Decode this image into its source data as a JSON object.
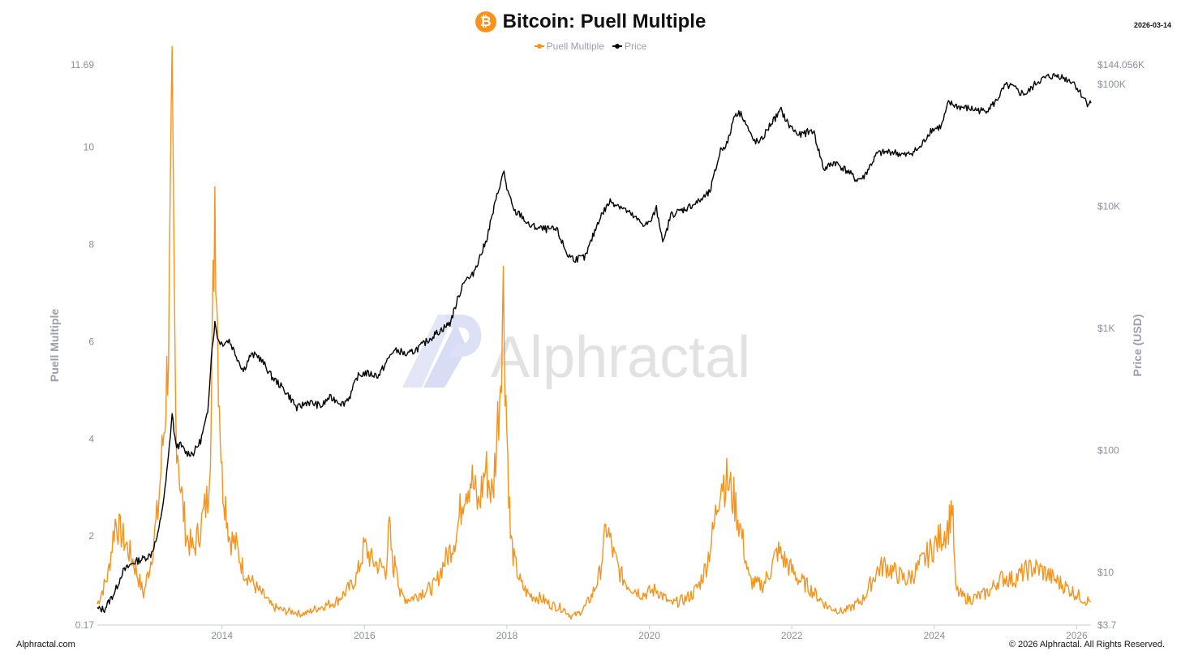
{
  "header": {
    "title": "Bitcoin: Puell Multiple",
    "date": "2026-03-14",
    "icon": "bitcoin-icon"
  },
  "watermark": {
    "text": "Alphractal"
  },
  "footer": {
    "left": "Alphractal.com",
    "right": "© 2026 Alphractal. All Rights Reserved."
  },
  "colors": {
    "puell": "#f7931a",
    "price": "#000000",
    "axis": "#8a8f9c"
  },
  "chart_data": {
    "type": "line",
    "title": "Bitcoin: Puell Multiple",
    "legend": {
      "placement": "top-center",
      "entries": [
        "Puell Multiple",
        "Price"
      ]
    },
    "grid": false,
    "x_axis": {
      "label": "",
      "range": [
        2012.25,
        2026.2
      ],
      "ticks": [
        2014,
        2016,
        2018,
        2020,
        2022,
        2024,
        2026
      ],
      "tick_labels": [
        "2014",
        "2016",
        "2018",
        "2020",
        "2022",
        "2024",
        "2026"
      ]
    },
    "y_axis_left": {
      "label": "Puell Multiple",
      "scale": "linear",
      "range": [
        0.17,
        11.69
      ],
      "ticks": [
        0.17,
        2,
        4,
        6,
        8,
        10,
        11.69
      ],
      "tick_labels": [
        "0.17",
        "2",
        "4",
        "6",
        "8",
        "10",
        "11.69"
      ]
    },
    "y_axis_right": {
      "label": "Price (USD)",
      "scale": "log",
      "range": [
        3.7,
        144056
      ],
      "ticks": [
        3.7,
        10,
        100,
        1000,
        10000,
        100000,
        144056
      ],
      "tick_labels": [
        "$3.7",
        "$10",
        "$100",
        "$1K",
        "$10K",
        "$100K",
        "$144.056K"
      ]
    },
    "series": [
      {
        "name": "Puell Multiple",
        "axis": "left",
        "color": "#f7931a",
        "x": [
          2012.25,
          2012.4,
          2012.5,
          2012.6,
          2012.75,
          2012.9,
          2013.0,
          2013.1,
          2013.2,
          2013.25,
          2013.3,
          2013.35,
          2013.42,
          2013.5,
          2013.6,
          2013.7,
          2013.8,
          2013.85,
          2013.9,
          2013.95,
          2014.0,
          2014.05,
          2014.1,
          2014.2,
          2014.3,
          2014.4,
          2014.5,
          2014.6,
          2014.7,
          2014.8,
          2014.9,
          2015.0,
          2015.1,
          2015.2,
          2015.3,
          2015.4,
          2015.5,
          2015.6,
          2015.7,
          2015.8,
          2015.9,
          2016.0,
          2016.1,
          2016.2,
          2016.3,
          2016.35,
          2016.4,
          2016.45,
          2016.5,
          2016.6,
          2016.7,
          2016.8,
          2016.9,
          2017.0,
          2017.1,
          2017.2,
          2017.3,
          2017.4,
          2017.5,
          2017.6,
          2017.7,
          2017.8,
          2017.9,
          2017.95,
          2018.0,
          2018.05,
          2018.1,
          2018.2,
          2018.3,
          2018.4,
          2018.5,
          2018.6,
          2018.7,
          2018.8,
          2018.9,
          2019.0,
          2019.1,
          2019.2,
          2019.3,
          2019.4,
          2019.5,
          2019.6,
          2019.7,
          2019.8,
          2019.9,
          2020.0,
          2020.1,
          2020.2,
          2020.3,
          2020.4,
          2020.5,
          2020.6,
          2020.7,
          2020.8,
          2020.9,
          2021.0,
          2021.1,
          2021.2,
          2021.3,
          2021.4,
          2021.5,
          2021.6,
          2021.7,
          2021.8,
          2021.9,
          2022.0,
          2022.1,
          2022.2,
          2022.3,
          2022.4,
          2022.5,
          2022.6,
          2022.7,
          2022.8,
          2022.9,
          2023.0,
          2023.1,
          2023.2,
          2023.3,
          2023.4,
          2023.5,
          2023.6,
          2023.7,
          2023.8,
          2023.9,
          2024.0,
          2024.1,
          2024.2,
          2024.25,
          2024.3,
          2024.4,
          2024.5,
          2024.6,
          2024.7,
          2024.8,
          2024.9,
          2025.0,
          2025.1,
          2025.2,
          2025.3,
          2025.4,
          2025.5,
          2025.6,
          2025.7,
          2025.8,
          2025.9,
          2026.0,
          2026.1,
          2026.2
        ],
        "values": [
          0.6,
          1.2,
          2.3,
          2.0,
          1.5,
          0.8,
          1.5,
          2.5,
          4.5,
          6.0,
          10.5,
          4.5,
          3.0,
          2.0,
          1.7,
          2.2,
          2.8,
          4.5,
          9.2,
          5.5,
          3.2,
          2.7,
          2.0,
          1.8,
          1.3,
          1.1,
          0.9,
          0.75,
          0.55,
          0.5,
          0.45,
          0.45,
          0.4,
          0.42,
          0.5,
          0.55,
          0.6,
          0.65,
          0.8,
          0.95,
          1.2,
          1.8,
          1.5,
          1.4,
          1.3,
          2.2,
          1.3,
          1.5,
          0.8,
          0.7,
          0.75,
          0.85,
          0.9,
          1.0,
          1.4,
          1.7,
          2.1,
          3.0,
          3.2,
          2.6,
          3.4,
          2.8,
          5.0,
          7.0,
          4.2,
          2.0,
          1.5,
          1.0,
          0.8,
          0.75,
          0.7,
          0.6,
          0.55,
          0.5,
          0.35,
          0.4,
          0.55,
          0.8,
          1.2,
          2.2,
          1.6,
          1.2,
          1.0,
          0.9,
          0.8,
          0.85,
          0.9,
          0.75,
          0.6,
          0.65,
          0.7,
          0.8,
          1.0,
          1.4,
          2.1,
          3.2,
          3.1,
          2.7,
          2.0,
          1.1,
          1.0,
          1.0,
          1.3,
          1.7,
          1.5,
          1.3,
          1.1,
          1.0,
          0.85,
          0.7,
          0.55,
          0.5,
          0.45,
          0.5,
          0.6,
          0.7,
          1.0,
          1.3,
          1.4,
          1.3,
          1.2,
          1.1,
          1.2,
          1.4,
          1.6,
          1.8,
          2.0,
          2.2,
          2.7,
          0.9,
          0.75,
          0.7,
          0.75,
          0.8,
          0.9,
          1.1,
          1.15,
          1.1,
          1.2,
          1.3,
          1.35,
          1.3,
          1.2,
          1.1,
          1.0,
          0.9,
          0.8,
          0.7,
          0.65
        ]
      },
      {
        "name": "Price",
        "axis": "right",
        "color": "#000000",
        "x": [
          2012.25,
          2012.35,
          2012.5,
          2012.6,
          2012.75,
          2012.9,
          2013.0,
          2013.1,
          2013.2,
          2013.25,
          2013.3,
          2013.35,
          2013.42,
          2013.5,
          2013.6,
          2013.7,
          2013.8,
          2013.85,
          2013.9,
          2013.95,
          2014.0,
          2014.1,
          2014.2,
          2014.3,
          2014.4,
          2014.5,
          2014.6,
          2014.7,
          2014.8,
          2014.9,
          2015.0,
          2015.05,
          2015.2,
          2015.4,
          2015.5,
          2015.6,
          2015.7,
          2015.8,
          2015.9,
          2016.0,
          2016.2,
          2016.4,
          2016.5,
          2016.6,
          2016.8,
          2017.0,
          2017.2,
          2017.4,
          2017.5,
          2017.7,
          2017.9,
          2017.96,
          2018.0,
          2018.1,
          2018.2,
          2018.3,
          2018.5,
          2018.7,
          2018.85,
          2018.95,
          2019.1,
          2019.3,
          2019.45,
          2019.6,
          2019.8,
          2019.9,
          2020.0,
          2020.1,
          2020.2,
          2020.3,
          2020.5,
          2020.7,
          2020.85,
          2021.0,
          2021.1,
          2021.2,
          2021.3,
          2021.45,
          2021.55,
          2021.7,
          2021.85,
          2021.95,
          2022.1,
          2022.3,
          2022.45,
          2022.6,
          2022.8,
          2022.9,
          2023.0,
          2023.2,
          2023.4,
          2023.6,
          2023.8,
          2023.95,
          2024.1,
          2024.2,
          2024.35,
          2024.5,
          2024.7,
          2024.85,
          2025.0,
          2025.1,
          2025.2,
          2025.3,
          2025.45,
          2025.6,
          2025.75,
          2025.85,
          2025.95,
          2026.05,
          2026.15,
          2026.2
        ],
        "values": [
          5,
          5,
          7,
          10,
          12,
          13,
          14,
          20,
          47,
          90,
          200,
          110,
          110,
          95,
          95,
          120,
          200,
          600,
          1100,
          800,
          750,
          800,
          600,
          450,
          600,
          600,
          500,
          400,
          350,
          300,
          250,
          220,
          250,
          230,
          270,
          260,
          240,
          280,
          400,
          430,
          410,
          650,
          650,
          600,
          720,
          900,
          1100,
          2500,
          2600,
          5000,
          15000,
          19000,
          14000,
          9000,
          8500,
          7000,
          6500,
          6400,
          4000,
          3700,
          3800,
          8000,
          11000,
          10000,
          8000,
          7200,
          7200,
          9500,
          5000,
          8500,
          9500,
          11000,
          13000,
          29000,
          33000,
          58000,
          57000,
          35000,
          33000,
          47000,
          61000,
          47000,
          38000,
          42000,
          20000,
          23000,
          19000,
          16500,
          17000,
          27000,
          28000,
          26000,
          30000,
          42000,
          45000,
          70000,
          65000,
          63000,
          60000,
          70000,
          97000,
          95000,
          85000,
          84000,
          105000,
          115000,
          118000,
          110000,
          105000,
          85000,
          70000,
          70000
        ]
      }
    ]
  }
}
